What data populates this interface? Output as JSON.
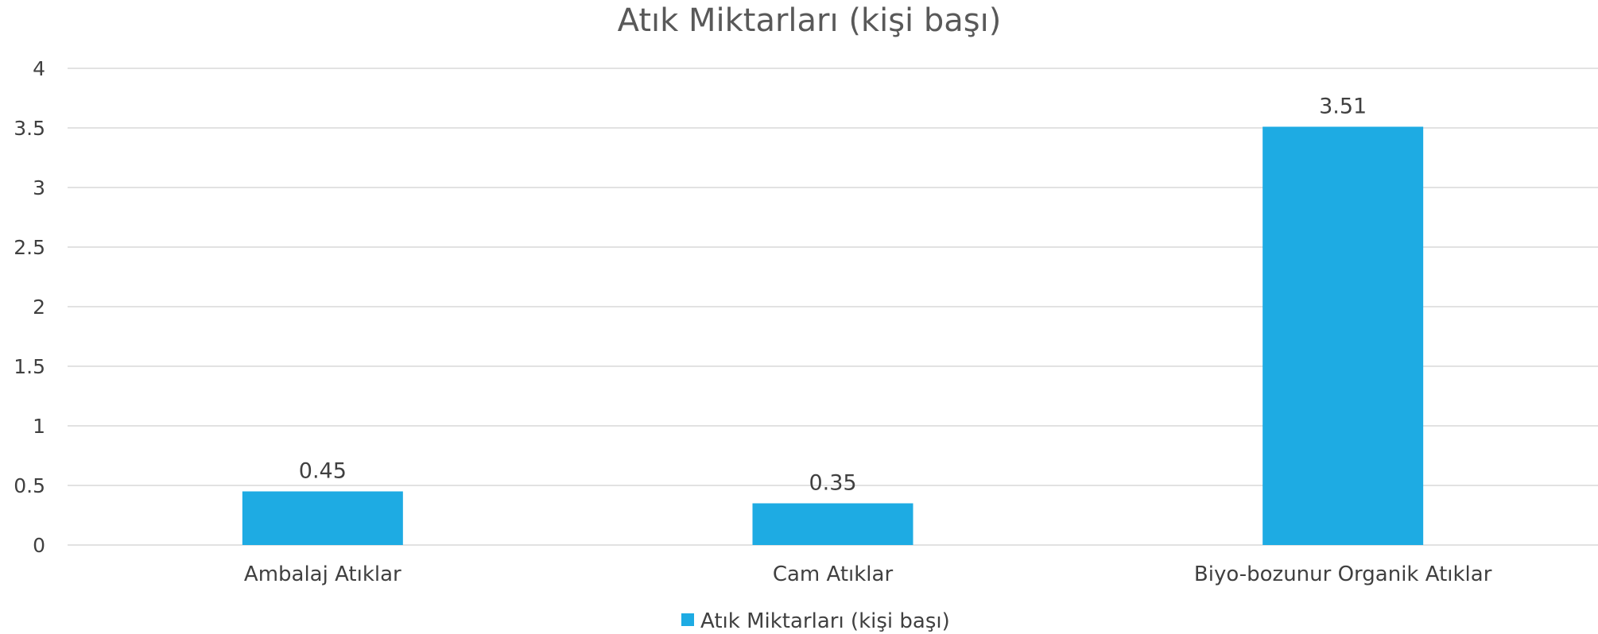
{
  "chart_data": {
    "type": "bar",
    "title": "Atık Miktarları (kişi başı)",
    "xlabel": "",
    "ylabel": "",
    "categories": [
      "Ambalaj Atıklar",
      "Cam Atıklar",
      "Biyo-bozunur Organik Atıklar"
    ],
    "series": [
      {
        "name": "Atık Miktarları (kişi başı)",
        "values": [
          0.45,
          0.35,
          3.51
        ],
        "color": "#1eabe3"
      }
    ],
    "data_labels": [
      "0.45",
      "0.35",
      "3.51"
    ],
    "ylim": [
      0,
      4
    ],
    "yticks": [
      "0",
      "0.5",
      "1",
      "1.5",
      "2",
      "2.5",
      "3",
      "3.5",
      "4"
    ],
    "grid": true,
    "legend_position": "bottom"
  }
}
